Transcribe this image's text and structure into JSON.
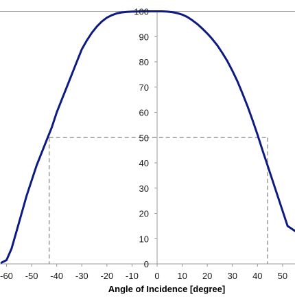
{
  "chart_data": {
    "type": "line",
    "title": "",
    "xlabel": "Angle of Incidence [degree]",
    "ylabel": "",
    "xlim": [
      -62,
      55
    ],
    "ylim": [
      0,
      100
    ],
    "x_ticks": [
      "-60",
      "-50",
      "-40",
      "-30",
      "-20",
      "-10",
      "0",
      "10",
      "20",
      "30",
      "40",
      "50"
    ],
    "y_ticks": [
      "0",
      "10",
      "20",
      "30",
      "40",
      "50",
      "60",
      "70",
      "80",
      "90",
      "100"
    ],
    "grid": false,
    "legend": "none",
    "series": [
      {
        "color": "#0d1a80",
        "x": [
          -62,
          -60,
          -58,
          -56,
          -54,
          -52,
          -50,
          -48,
          -46,
          -44,
          -42,
          -40,
          -38,
          -36,
          -34,
          -32,
          -30,
          -28,
          -26,
          -24,
          -22,
          -20,
          -18,
          -16,
          -14,
          -12,
          -10,
          -8,
          -6,
          -4,
          -2,
          0,
          2,
          4,
          6,
          8,
          10,
          12,
          14,
          16,
          18,
          20,
          22,
          24,
          26,
          28,
          30,
          32,
          34,
          36,
          38,
          40,
          42,
          44,
          46,
          48,
          50,
          52,
          55
        ],
        "y": [
          0.5,
          1.5,
          6,
          13,
          20,
          27,
          33,
          39,
          44,
          49,
          54,
          60,
          65,
          70,
          75,
          80,
          85,
          88.5,
          91.5,
          94,
          96,
          97.5,
          98.5,
          99.2,
          99.6,
          99.8,
          99.9,
          99.95,
          100,
          100,
          100,
          100,
          100,
          99.9,
          99.7,
          99.3,
          98.7,
          97.8,
          96.5,
          95,
          93.2,
          91.2,
          89,
          86.5,
          83.5,
          80.3,
          76.5,
          72.3,
          67.5,
          62.5,
          57,
          51.2,
          45,
          39,
          33,
          27,
          21,
          15,
          13
        ]
      }
    ],
    "reference_lines": {
      "y_level": 50,
      "x_left": -43,
      "x_right": 44
    },
    "axis_color": "#999999",
    "dash_color": "#999999"
  }
}
